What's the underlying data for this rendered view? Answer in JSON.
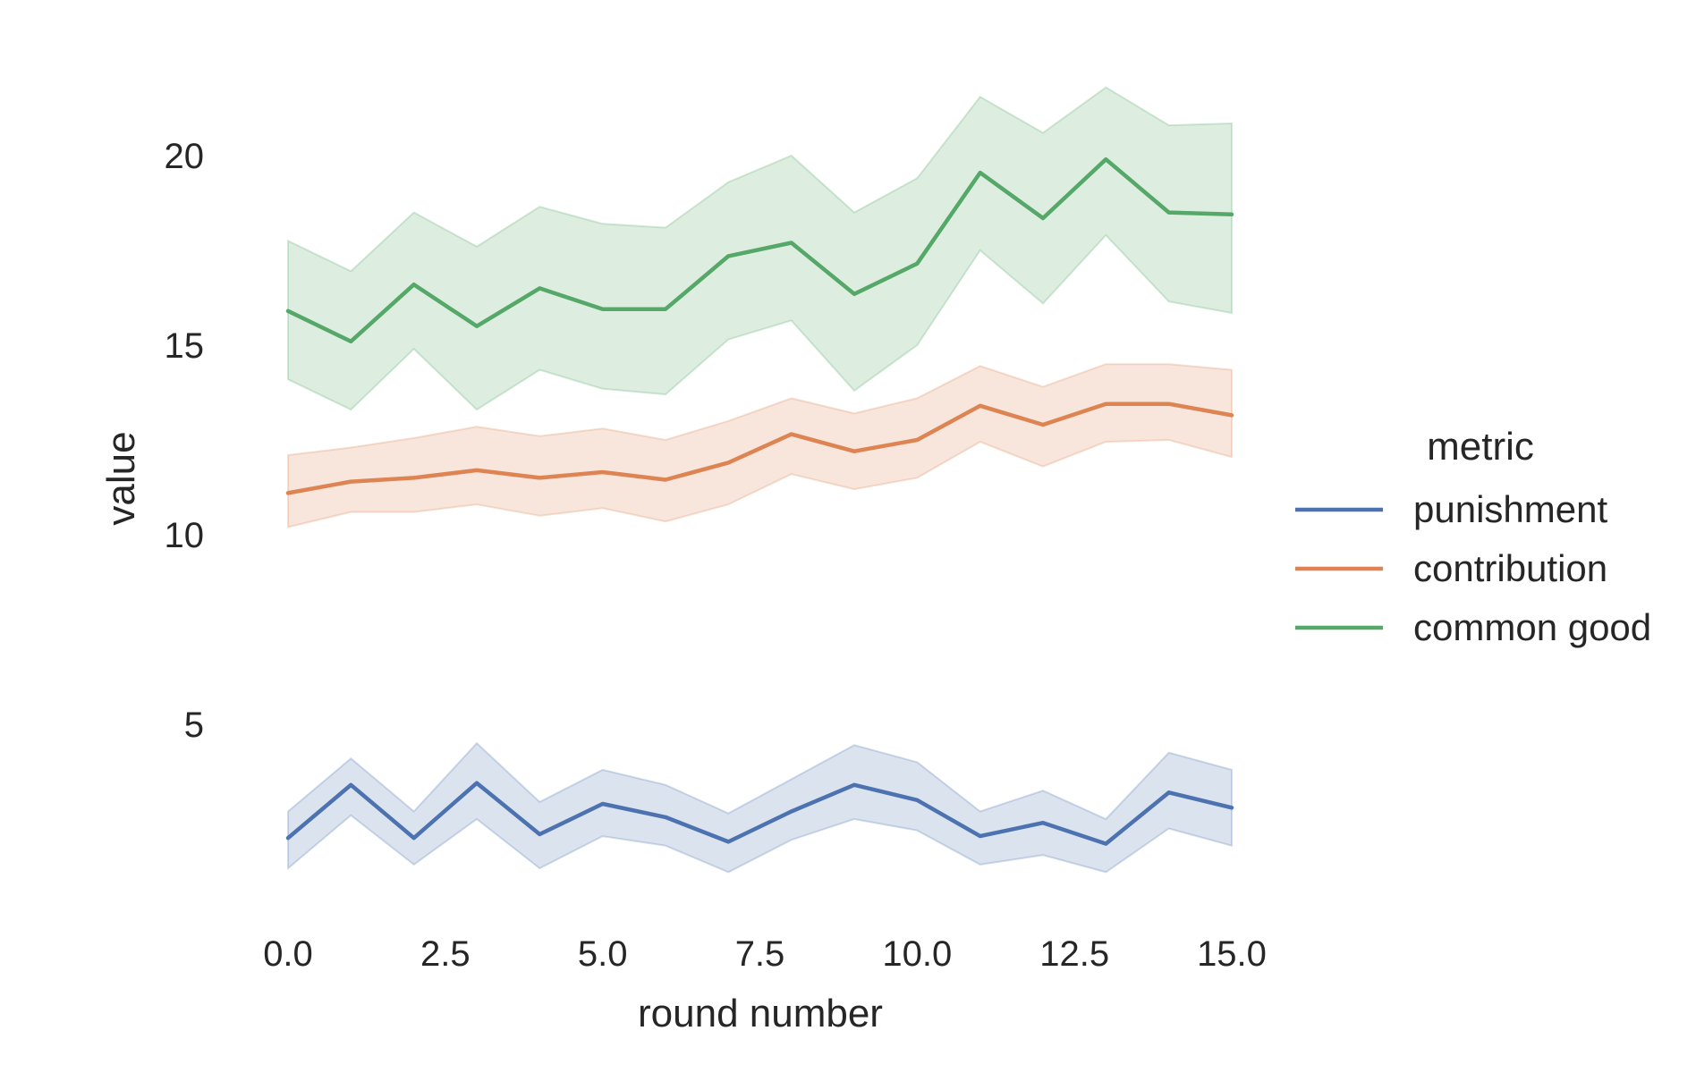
{
  "chart_data": {
    "type": "line",
    "xlabel": "round number",
    "ylabel": "value",
    "xlim": [
      0,
      15
    ],
    "ylim": [
      0.5,
      22
    ],
    "xticks": [
      0.0,
      2.5,
      5.0,
      7.5,
      10.0,
      12.5,
      15.0
    ],
    "xtick_labels": [
      "0.0",
      "2.5",
      "5.0",
      "7.5",
      "10.0",
      "12.5",
      "15.0"
    ],
    "yticks": [
      5,
      10,
      15,
      20
    ],
    "ytick_labels": [
      "5",
      "10",
      "15",
      "20"
    ],
    "grid": false,
    "legend": {
      "title": "metric",
      "placement": "center-right outside"
    },
    "x": [
      0,
      1,
      2,
      3,
      4,
      5,
      6,
      7,
      8,
      9,
      10,
      11,
      12,
      13,
      14,
      15
    ],
    "series": [
      {
        "name": "punishment",
        "color": "#4c72b0",
        "values": [
          2.0,
          3.4,
          2.0,
          3.45,
          2.1,
          2.9,
          2.55,
          1.9,
          2.7,
          3.4,
          3.0,
          2.05,
          2.4,
          1.85,
          3.2,
          2.8
        ],
        "lower": [
          1.2,
          2.6,
          1.3,
          2.5,
          1.2,
          2.05,
          1.8,
          1.1,
          1.95,
          2.5,
          2.2,
          1.3,
          1.55,
          1.1,
          2.25,
          1.8
        ],
        "upper": [
          2.7,
          4.1,
          2.7,
          4.5,
          2.95,
          3.8,
          3.4,
          2.65,
          3.55,
          4.45,
          4.0,
          2.7,
          3.25,
          2.5,
          4.25,
          3.8
        ]
      },
      {
        "name": "contribution",
        "color": "#dd8452",
        "values": [
          11.1,
          11.4,
          11.5,
          11.7,
          11.5,
          11.65,
          11.45,
          11.9,
          12.65,
          12.2,
          12.5,
          13.4,
          12.9,
          13.45,
          13.45,
          13.15
        ],
        "lower": [
          10.2,
          10.6,
          10.6,
          10.8,
          10.5,
          10.7,
          10.35,
          10.8,
          11.6,
          11.2,
          11.5,
          12.45,
          11.8,
          12.45,
          12.5,
          12.05
        ],
        "upper": [
          12.1,
          12.3,
          12.55,
          12.85,
          12.6,
          12.8,
          12.5,
          13.0,
          13.6,
          13.2,
          13.6,
          14.45,
          13.9,
          14.5,
          14.5,
          14.35
        ]
      },
      {
        "name": "common good",
        "color": "#55a868",
        "values": [
          15.9,
          15.1,
          16.6,
          15.5,
          16.5,
          15.95,
          15.95,
          17.35,
          17.7,
          16.35,
          17.15,
          19.55,
          18.35,
          19.9,
          18.5,
          18.45
        ],
        "lower": [
          14.1,
          13.3,
          14.9,
          13.3,
          14.35,
          13.85,
          13.7,
          15.15,
          15.65,
          13.8,
          15.0,
          17.5,
          16.1,
          17.9,
          16.15,
          15.85
        ],
        "upper": [
          17.75,
          16.95,
          18.5,
          17.6,
          18.65,
          18.2,
          18.1,
          19.3,
          20.0,
          18.5,
          19.4,
          21.55,
          20.6,
          21.8,
          20.8,
          20.85
        ]
      }
    ]
  }
}
